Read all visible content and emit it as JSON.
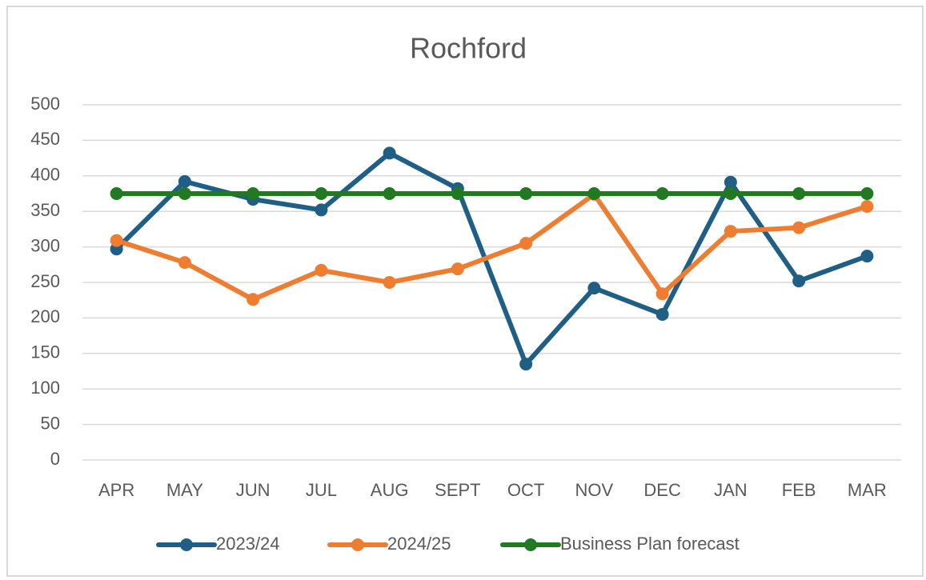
{
  "chart_data": {
    "type": "line",
    "title": "Rochford",
    "categories": [
      "APR",
      "MAY",
      "JUN",
      "JUL",
      "AUG",
      "SEPT",
      "OCT",
      "NOV",
      "DEC",
      "JAN",
      "FEB",
      "MAR"
    ],
    "series": [
      {
        "name": "2023/24",
        "color": "#1f5f85",
        "values": [
          297,
          392,
          367,
          352,
          432,
          382,
          135,
          242,
          205,
          391,
          252,
          287
        ]
      },
      {
        "name": "2024/25",
        "color": "#ee7d31",
        "values": [
          309,
          278,
          226,
          267,
          250,
          269,
          305,
          374,
          234,
          322,
          327,
          357
        ]
      },
      {
        "name": "Business Plan forecast",
        "color": "#217a21",
        "values": [
          375,
          375,
          375,
          375,
          375,
          375,
          375,
          375,
          375,
          375,
          375,
          375
        ]
      }
    ],
    "ylim": [
      0,
      500
    ],
    "yticks": [
      0,
      50,
      100,
      150,
      200,
      250,
      300,
      350,
      400,
      450,
      500
    ],
    "grid": true,
    "legend": "bottom"
  }
}
